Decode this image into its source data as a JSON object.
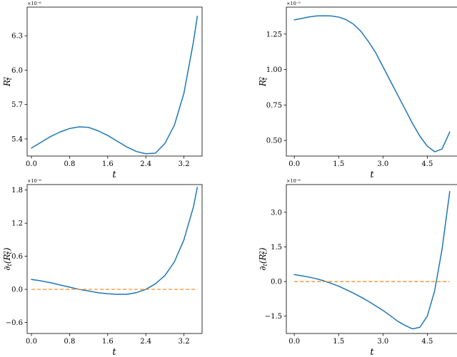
{
  "colors": {
    "curve": "#1f77b4",
    "reference": "#ff7f0e"
  },
  "chart_data": [
    {
      "type": "line",
      "xlabel": "t",
      "ylabel": "R_t^2",
      "scale_label": "×10⁻⁶",
      "xlim": [
        -0.09,
        3.58
      ],
      "ylim": [
        5.25,
        6.55
      ],
      "xticks": [
        0.0,
        0.8,
        1.6,
        2.4,
        3.2
      ],
      "xtick_labels": [
        "0.0",
        "0.8",
        "1.6",
        "2.4",
        "3.2"
      ],
      "yticks": [
        5.4,
        5.7,
        6.0,
        6.3
      ],
      "ytick_labels": [
        "5.4",
        "5.7",
        "6.0",
        "6.3"
      ],
      "series": [
        {
          "x": [
            0.0,
            0.2,
            0.4,
            0.6,
            0.8,
            1.0,
            1.2,
            1.4,
            1.6,
            1.8,
            2.0,
            2.2,
            2.4,
            2.6,
            2.8,
            3.0,
            3.2,
            3.4,
            3.48
          ],
          "y": [
            5.32,
            5.37,
            5.42,
            5.46,
            5.49,
            5.505,
            5.5,
            5.47,
            5.43,
            5.38,
            5.33,
            5.29,
            5.27,
            5.275,
            5.36,
            5.52,
            5.8,
            6.25,
            6.47
          ]
        }
      ]
    },
    {
      "type": "line",
      "xlabel": "t",
      "ylabel": "R_t^2",
      "scale_label": "×10⁻⁵",
      "xlim": [
        -0.27,
        5.53
      ],
      "ylim": [
        0.39,
        1.44
      ],
      "xticks": [
        0.0,
        1.5,
        3.0,
        4.5
      ],
      "xtick_labels": [
        "0.0",
        "1.5",
        "3.0",
        "4.5"
      ],
      "yticks": [
        0.5,
        0.75,
        1.0,
        1.25
      ],
      "ytick_labels": [
        "0.50",
        "0.75",
        "1.00",
        "1.25"
      ],
      "series": [
        {
          "x": [
            0.0,
            0.25,
            0.5,
            0.75,
            1.0,
            1.25,
            1.5,
            1.75,
            2.0,
            2.25,
            2.5,
            2.75,
            3.0,
            3.25,
            3.5,
            3.75,
            4.0,
            4.25,
            4.5,
            4.75,
            5.0,
            5.26
          ],
          "y": [
            1.35,
            1.36,
            1.371,
            1.378,
            1.379,
            1.378,
            1.37,
            1.352,
            1.32,
            1.27,
            1.2,
            1.12,
            1.02,
            0.92,
            0.82,
            0.72,
            0.62,
            0.53,
            0.46,
            0.42,
            0.44,
            0.56
          ]
        }
      ]
    },
    {
      "type": "line",
      "xlabel": "t",
      "ylabel": "∂_t(R_t^2)",
      "scale_label": "×10⁻⁶",
      "xlim": [
        -0.09,
        3.58
      ],
      "ylim": [
        -0.8,
        1.9
      ],
      "xticks": [
        0.0,
        0.8,
        1.6,
        2.4,
        3.2
      ],
      "xtick_labels": [
        "0.0",
        "0.8",
        "1.6",
        "2.4",
        "3.2"
      ],
      "yticks": [
        -0.6,
        0.0,
        0.6,
        1.2,
        1.8
      ],
      "ytick_labels": [
        "−0.6",
        "0.0",
        "0.6",
        "1.2",
        "1.8"
      ],
      "series": [
        {
          "x": [
            0.0,
            0.2,
            0.4,
            0.6,
            0.8,
            1.0,
            1.2,
            1.4,
            1.6,
            1.8,
            2.0,
            2.2,
            2.4,
            2.6,
            2.8,
            3.0,
            3.2,
            3.4,
            3.48
          ],
          "y": [
            0.18,
            0.155,
            0.12,
            0.08,
            0.04,
            0.0,
            -0.03,
            -0.06,
            -0.08,
            -0.09,
            -0.09,
            -0.06,
            0.0,
            0.1,
            0.25,
            0.5,
            0.9,
            1.5,
            1.85
          ]
        },
        {
          "x": [
            0.0,
            3.48
          ],
          "y": [
            0.0,
            0.0
          ]
        }
      ]
    },
    {
      "type": "line",
      "xlabel": "t",
      "ylabel": "∂_t(R_t^2)",
      "scale_label": "×10⁻⁶",
      "xlim": [
        -0.27,
        5.53
      ],
      "ylim": [
        -2.25,
        4.2
      ],
      "xticks": [
        0.0,
        1.5,
        3.0,
        4.5
      ],
      "xtick_labels": [
        "0.0",
        "1.5",
        "3.0",
        "4.5"
      ],
      "yticks": [
        -1.5,
        0.0,
        1.5,
        3.0
      ],
      "ytick_labels": [
        "−1.5",
        "0.0",
        "1.5",
        "3.0"
      ],
      "series": [
        {
          "x": [
            0.0,
            0.25,
            0.5,
            0.75,
            1.0,
            1.25,
            1.5,
            1.75,
            2.0,
            2.25,
            2.5,
            2.75,
            3.0,
            3.25,
            3.5,
            3.75,
            4.0,
            4.25,
            4.5,
            4.75,
            5.0,
            5.26
          ],
          "y": [
            0.3,
            0.25,
            0.19,
            0.12,
            0.03,
            -0.08,
            -0.2,
            -0.35,
            -0.5,
            -0.67,
            -0.85,
            -1.05,
            -1.25,
            -1.48,
            -1.72,
            -1.9,
            -2.05,
            -1.98,
            -1.5,
            -0.4,
            1.4,
            3.9
          ]
        },
        {
          "x": [
            0.0,
            5.26
          ],
          "y": [
            0.0,
            0.0
          ]
        }
      ]
    }
  ]
}
